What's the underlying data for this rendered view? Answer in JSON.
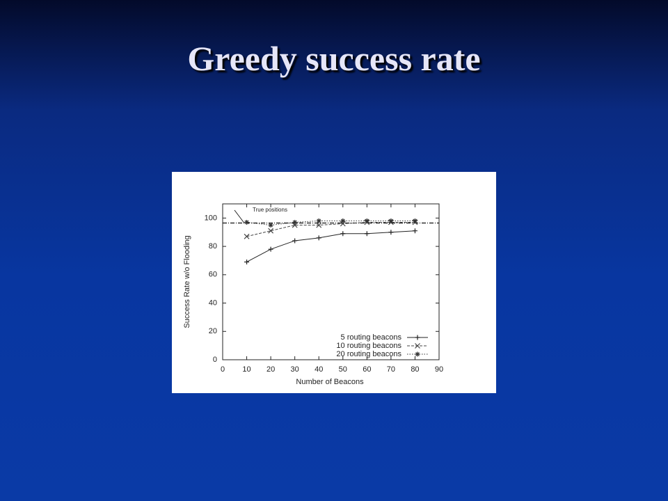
{
  "slide": {
    "title": "Greedy success rate"
  },
  "chart_data": {
    "type": "line",
    "xlabel": "Number of Beacons",
    "ylabel": "Success Rate w/o Flooding",
    "x": [
      10,
      20,
      30,
      40,
      50,
      60,
      70,
      80
    ],
    "series": [
      {
        "name": "5 routing beacons",
        "color": "#222222",
        "marker": "plus",
        "line_style": "solid",
        "values": [
          69,
          78,
          84,
          86,
          89,
          89,
          90,
          91
        ]
      },
      {
        "name": "10 routing beacons",
        "color": "#444444",
        "marker": "cross",
        "line_style": "dashed",
        "values": [
          87,
          91,
          95,
          95,
          96,
          97,
          97,
          97
        ]
      },
      {
        "name": "20 routing beacons",
        "color": "#333333",
        "marker": "star",
        "line_style": "dotted",
        "values": [
          97,
          95,
          97,
          98,
          98,
          98,
          98,
          98
        ]
      }
    ],
    "reference_line": {
      "label": "True positions",
      "value": 96.5
    },
    "xlim": [
      0,
      90
    ],
    "xticks": [
      0,
      10,
      20,
      30,
      40,
      50,
      60,
      70,
      80,
      90
    ],
    "ylim": [
      0,
      110
    ],
    "yticks": [
      0,
      20,
      40,
      60,
      80,
      100
    ],
    "legend": "lower-right"
  }
}
